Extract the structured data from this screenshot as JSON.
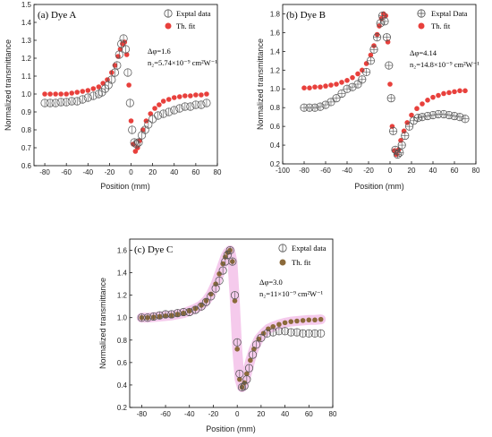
{
  "chart_data": [
    {
      "type": "scatter",
      "title": "(a) Dye A",
      "xlabel": "Position (mm)",
      "ylabel": "Normalized transmittance",
      "xlim": [
        -90,
        80
      ],
      "ylim": [
        0.6,
        1.5
      ],
      "xticks": [
        -80,
        -60,
        -40,
        -20,
        0,
        20,
        40,
        60,
        80
      ],
      "yticks": [
        0.6,
        0.7,
        0.8,
        0.9,
        1.0,
        1.1,
        1.2,
        1.3,
        1.4,
        1.5
      ],
      "xtick_labels": [
        "-80",
        "-60",
        "-40",
        "-20",
        "0",
        "20",
        "40",
        "60",
        "80"
      ],
      "ytick_labels": [
        "0.6",
        "0.7",
        "0.8",
        "0.9",
        "1.0",
        "1.1",
        "1.2",
        "1.3",
        "1.4",
        "1.5"
      ],
      "annotation_lines": [
        "Δφ=1.6",
        "n₂=5.74×10⁻⁹ cm²W⁻¹"
      ],
      "legend_position": "top-right",
      "legend_marker": "circle-bar",
      "fit_color": "#e8403c",
      "data_edge_color": "#555555",
      "series": [
        {
          "name": "Exptal data",
          "style": "open-circle",
          "x": [
            -80,
            -75,
            -70,
            -65,
            -60,
            -55,
            -50,
            -45,
            -40,
            -35,
            -30,
            -27,
            -24,
            -21,
            -18,
            -15,
            -13,
            -11,
            -9,
            -7,
            -5,
            -3,
            -1,
            1,
            3,
            5,
            7,
            10,
            13,
            16,
            20,
            25,
            30,
            35,
            40,
            45,
            50,
            55,
            60,
            65,
            70
          ],
          "y": [
            0.95,
            0.95,
            0.95,
            0.955,
            0.955,
            0.96,
            0.96,
            0.97,
            0.98,
            0.99,
            1.0,
            1.01,
            1.03,
            1.05,
            1.08,
            1.12,
            1.16,
            1.22,
            1.28,
            1.31,
            1.25,
            1.12,
            0.95,
            0.8,
            0.73,
            0.72,
            0.73,
            0.77,
            0.8,
            0.83,
            0.86,
            0.88,
            0.89,
            0.9,
            0.91,
            0.92,
            0.93,
            0.93,
            0.94,
            0.94,
            0.95
          ]
        },
        {
          "name": "Th. fit",
          "style": "filled-dot",
          "x": [
            -80,
            -75,
            -70,
            -65,
            -60,
            -55,
            -50,
            -45,
            -40,
            -35,
            -30,
            -26,
            -22,
            -18,
            -15,
            -12,
            -10,
            -8,
            -6,
            -4,
            -2,
            0,
            2,
            4,
            6,
            8,
            11,
            14,
            18,
            22,
            26,
            30,
            35,
            40,
            45,
            50,
            55,
            60,
            65,
            70
          ],
          "y": [
            1.0,
            1.0,
            1.0,
            1.0,
            1.0,
            1.005,
            1.01,
            1.015,
            1.02,
            1.03,
            1.04,
            1.06,
            1.08,
            1.12,
            1.16,
            1.21,
            1.25,
            1.28,
            1.29,
            1.22,
            1.05,
            0.85,
            0.72,
            0.68,
            0.7,
            0.74,
            0.8,
            0.85,
            0.89,
            0.92,
            0.94,
            0.96,
            0.97,
            0.98,
            0.985,
            0.99,
            0.99,
            0.995,
            0.995,
            1.0
          ]
        }
      ]
    },
    {
      "type": "scatter",
      "title": "(b) Dye B",
      "xlabel": "Position (mm)",
      "ylabel": "Normalized transmittance",
      "xlim": [
        -100,
        80
      ],
      "ylim": [
        0.2,
        1.9
      ],
      "xticks": [
        -100,
        -80,
        -60,
        -40,
        -20,
        0,
        20,
        40,
        60,
        80
      ],
      "yticks": [
        0.2,
        0.4,
        0.6,
        0.8,
        1.0,
        1.2,
        1.4,
        1.6,
        1.8
      ],
      "xtick_labels": [
        "-100",
        "-80",
        "-60",
        "-40",
        "-20",
        "0",
        "20",
        "40",
        "60",
        "80"
      ],
      "ytick_labels": [
        "0.2",
        "0.4",
        "0.6",
        "0.8",
        "1.0",
        "1.2",
        "1.4",
        "1.6",
        "1.8"
      ],
      "annotation_lines": [
        "Δφ=4.14",
        "n₂=14.8×10⁻⁹ cm²W⁻¹"
      ],
      "legend_position": "top-right",
      "legend_marker": "circle-cross",
      "fit_color": "#e8403c",
      "data_edge_color": "#555555",
      "series": [
        {
          "name": "Exptal Data",
          "style": "open-circle",
          "x": [
            -80,
            -75,
            -70,
            -65,
            -60,
            -55,
            -50,
            -45,
            -40,
            -35,
            -30,
            -26,
            -22,
            -18,
            -15,
            -12,
            -9,
            -7,
            -5,
            -3,
            -1,
            1,
            3,
            5,
            7,
            9,
            11,
            14,
            18,
            22,
            26,
            30,
            35,
            40,
            45,
            50,
            55,
            60,
            65,
            70
          ],
          "y": [
            0.8,
            0.8,
            0.8,
            0.81,
            0.83,
            0.86,
            0.9,
            0.95,
            1.0,
            1.02,
            1.05,
            1.1,
            1.18,
            1.3,
            1.42,
            1.55,
            1.7,
            1.78,
            1.72,
            1.55,
            1.25,
            0.9,
            0.55,
            0.35,
            0.3,
            0.32,
            0.4,
            0.5,
            0.6,
            0.66,
            0.69,
            0.7,
            0.71,
            0.72,
            0.73,
            0.73,
            0.72,
            0.71,
            0.7,
            0.68
          ]
        },
        {
          "name": "Th. fit",
          "style": "filled-dot",
          "x": [
            -80,
            -75,
            -70,
            -65,
            -60,
            -55,
            -50,
            -45,
            -40,
            -35,
            -30,
            -26,
            -22,
            -18,
            -15,
            -12,
            -10,
            -8,
            -6,
            -4,
            -2,
            0,
            2,
            4,
            6,
            8,
            10,
            13,
            16,
            20,
            25,
            30,
            35,
            40,
            45,
            50,
            55,
            60,
            65,
            70
          ],
          "y": [
            1.01,
            1.01,
            1.02,
            1.02,
            1.03,
            1.04,
            1.05,
            1.07,
            1.09,
            1.12,
            1.16,
            1.2,
            1.27,
            1.36,
            1.46,
            1.58,
            1.67,
            1.75,
            1.8,
            1.78,
            1.5,
            1.05,
            0.6,
            0.34,
            0.3,
            0.35,
            0.45,
            0.55,
            0.64,
            0.72,
            0.79,
            0.84,
            0.88,
            0.91,
            0.93,
            0.95,
            0.96,
            0.97,
            0.98,
            0.98
          ]
        }
      ]
    },
    {
      "type": "scatter",
      "title": "(c) Dye C",
      "xlabel": "Position (mm)",
      "ylabel": "Normalized transmittance",
      "xlim": [
        -90,
        80
      ],
      "ylim": [
        0.2,
        1.7
      ],
      "xticks": [
        -80,
        -60,
        -40,
        -20,
        0,
        20,
        40,
        60,
        80
      ],
      "yticks": [
        0.2,
        0.4,
        0.6,
        0.8,
        1.0,
        1.2,
        1.4,
        1.6
      ],
      "xtick_labels": [
        "-80",
        "-60",
        "-40",
        "-20",
        "0",
        "20",
        "40",
        "60",
        "80"
      ],
      "ytick_labels": [
        "0.2",
        "0.4",
        "0.6",
        "0.8",
        "1.0",
        "1.2",
        "1.4",
        "1.6"
      ],
      "annotation_lines": [
        "Δφ=3.0",
        "n₂=11×10⁻⁹ cm²W⁻¹"
      ],
      "legend_position": "top-right",
      "legend_marker": "circle-bar",
      "fit_color": "#8b6a3a",
      "data_edge_color": "#555555",
      "glow_color": "#f2b8e6",
      "series": [
        {
          "name": "Exptal data",
          "style": "open-circle",
          "x": [
            -80,
            -75,
            -70,
            -65,
            -60,
            -55,
            -50,
            -45,
            -40,
            -35,
            -30,
            -26,
            -22,
            -18,
            -15,
            -12,
            -10,
            -8,
            -6,
            -4,
            -2,
            0,
            2,
            4,
            6,
            8,
            10,
            13,
            16,
            20,
            25,
            30,
            35,
            40,
            45,
            50,
            55,
            60,
            65,
            70
          ],
          "y": [
            1.0,
            1.0,
            1.01,
            1.02,
            1.03,
            1.03,
            1.04,
            1.05,
            1.05,
            1.07,
            1.1,
            1.14,
            1.19,
            1.26,
            1.33,
            1.42,
            1.5,
            1.56,
            1.6,
            1.5,
            1.2,
            0.78,
            0.5,
            0.38,
            0.39,
            0.45,
            0.55,
            0.67,
            0.76,
            0.82,
            0.86,
            0.87,
            0.88,
            0.88,
            0.87,
            0.87,
            0.86,
            0.86,
            0.86,
            0.86
          ]
        },
        {
          "name": "Th. fit",
          "style": "filled-dot",
          "x": [
            -80,
            -75,
            -70,
            -65,
            -60,
            -55,
            -50,
            -45,
            -40,
            -35,
            -30,
            -26,
            -22,
            -18,
            -15,
            -12,
            -10,
            -8,
            -6,
            -4,
            -2,
            0,
            2,
            4,
            6,
            8,
            11,
            14,
            18,
            22,
            26,
            30,
            35,
            40,
            45,
            50,
            55,
            60,
            65,
            70
          ],
          "y": [
            1.0,
            1.0,
            1.005,
            1.01,
            1.015,
            1.02,
            1.03,
            1.04,
            1.06,
            1.08,
            1.11,
            1.15,
            1.21,
            1.3,
            1.39,
            1.48,
            1.54,
            1.58,
            1.6,
            1.5,
            1.15,
            0.72,
            0.45,
            0.38,
            0.42,
            0.5,
            0.62,
            0.72,
            0.81,
            0.86,
            0.9,
            0.92,
            0.94,
            0.955,
            0.965,
            0.97,
            0.975,
            0.98,
            0.98,
            0.985
          ]
        }
      ]
    }
  ]
}
